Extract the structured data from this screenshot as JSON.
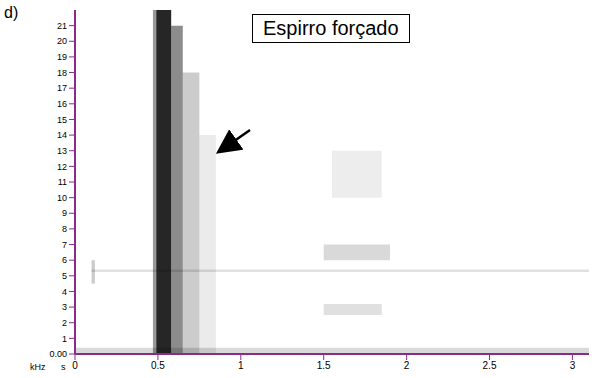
{
  "chart_data": {
    "type": "heatmap",
    "panel": "d)",
    "title": "Espirro forçado",
    "xlabel": "s",
    "ylabel": "kHz",
    "color": "#000000",
    "xlim": [
      0,
      3.1
    ],
    "xticks": [
      0,
      0.5,
      1,
      1.5,
      2,
      2.5,
      3
    ],
    "ylim": [
      0,
      22
    ],
    "yticks": [
      {
        "value": 0,
        "label": "0.00"
      },
      1,
      2,
      3,
      4,
      5,
      6,
      7,
      8,
      9,
      10,
      11,
      12,
      13,
      14,
      15,
      16,
      17,
      18,
      19,
      20,
      21
    ],
    "cells": [
      {
        "x": [
          0.47,
          0.49
        ],
        "y": [
          0,
          22
        ],
        "value": 0.4
      },
      {
        "x": [
          0.49,
          0.58
        ],
        "y": [
          0,
          22
        ],
        "value": 0.85
      },
      {
        "x": [
          0.58,
          0.65
        ],
        "y": [
          0,
          21
        ],
        "value": 0.45
      },
      {
        "x": [
          0.65,
          0.75
        ],
        "y": [
          0,
          18
        ],
        "value": 0.2
      },
      {
        "x": [
          0.75,
          0.85
        ],
        "y": [
          0,
          14
        ],
        "value": 0.08
      },
      {
        "x": [
          0,
          3.1
        ],
        "y": [
          0,
          0.4
        ],
        "value": 0.15
      },
      {
        "x": [
          0.1,
          3.1
        ],
        "y": [
          5.25,
          5.4
        ],
        "value": 0.12
      },
      {
        "x": [
          0.1,
          0.12
        ],
        "y": [
          4.5,
          6
        ],
        "value": 0.2
      },
      {
        "x": [
          1.5,
          1.9
        ],
        "y": [
          6,
          7
        ],
        "value": 0.15
      },
      {
        "x": [
          1.55,
          1.85
        ],
        "y": [
          10,
          13
        ],
        "value": 0.07
      },
      {
        "x": [
          1.5,
          1.85
        ],
        "y": [
          2.5,
          3.2
        ],
        "value": 0.12
      }
    ]
  }
}
